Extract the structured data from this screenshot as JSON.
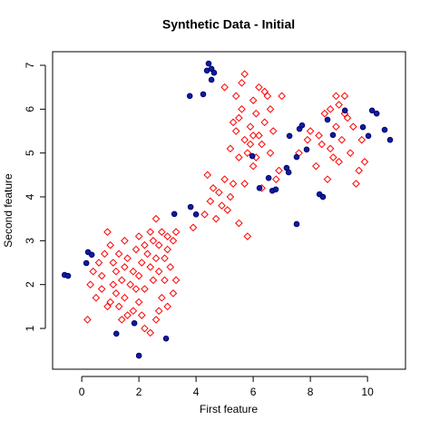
{
  "chart_data": {
    "type": "scatter",
    "title": "Synthetic Data - Initial",
    "xlabel": "First feature",
    "ylabel": "Second feature",
    "xlim": [
      -1.02,
      11.33
    ],
    "ylim": [
      0.07,
      7.31
    ],
    "xticks": [
      0,
      2,
      4,
      6,
      8,
      10
    ],
    "yticks": [
      1,
      2,
      3,
      4,
      5,
      6,
      7
    ],
    "grid": false,
    "series": [
      {
        "color": "#ff0000",
        "marker": "diamond",
        "x": [
          0.2,
          0.5,
          0.7,
          0.9,
          1.0,
          1.1,
          1.2,
          1.3,
          1.5,
          1.6,
          1.8,
          2.0,
          2.2,
          2.4,
          2.6,
          2.7,
          2.8,
          3.0,
          3.2,
          3.3,
          0.3,
          0.4,
          0.6,
          0.8,
          0.9,
          1.0,
          1.1,
          1.2,
          1.3,
          1.4,
          1.5,
          1.6,
          1.7,
          1.8,
          1.9,
          2.0,
          2.0,
          2.1,
          2.2,
          2.2,
          2.3,
          2.4,
          2.4,
          2.5,
          2.5,
          2.6,
          2.7,
          2.7,
          2.8,
          2.9,
          3.0,
          3.0,
          3.1,
          3.2,
          3.3,
          2.6,
          1.5,
          0.7,
          1.9,
          2.9,
          2.1,
          1.4,
          3.9,
          4.3,
          4.5,
          4.7,
          4.8,
          4.9,
          5.0,
          5.1,
          5.2,
          4.4,
          4.6,
          5.3,
          5.5,
          5.8,
          5.7,
          6.0,
          5.2,
          5.4,
          5.5,
          5.6,
          5.7,
          5.8,
          5.9,
          6.0,
          6.1,
          6.2,
          6.3,
          6.4,
          6.5,
          6.6,
          6.7,
          5.4,
          5.6,
          5.7,
          6.2,
          6.4,
          6.8,
          7.0,
          5.9,
          6.1,
          5.3,
          6.0,
          6.9,
          5.0,
          5.5,
          6.3,
          6.6,
          7.6,
          7.9,
          8.0,
          8.2,
          8.4,
          8.5,
          8.7,
          8.8,
          8.9,
          9.0,
          9.1,
          9.2,
          9.3,
          9.4,
          9.5,
          9.6,
          9.7,
          9.8,
          8.6,
          8.9,
          9.2,
          9.0,
          8.3,
          9.9,
          8.7
        ],
        "values": [
          1.2,
          1.7,
          1.9,
          1.5,
          1.6,
          2.0,
          1.8,
          1.5,
          1.7,
          1.3,
          1.4,
          1.6,
          1.0,
          0.9,
          1.2,
          1.4,
          1.7,
          1.5,
          1.8,
          2.1,
          2.0,
          2.3,
          2.5,
          2.7,
          3.2,
          2.9,
          2.5,
          2.3,
          2.7,
          2.1,
          2.4,
          2.6,
          2.0,
          2.3,
          2.8,
          3.1,
          2.2,
          2.5,
          2.9,
          1.9,
          2.7,
          3.2,
          2.4,
          2.1,
          3.0,
          2.6,
          2.3,
          2.9,
          3.2,
          2.6,
          2.8,
          3.1,
          2.4,
          3.0,
          3.2,
          3.5,
          3.0,
          2.2,
          1.9,
          2.1,
          1.3,
          1.2,
          3.3,
          3.6,
          3.9,
          3.5,
          4.1,
          3.8,
          4.4,
          3.7,
          4.0,
          4.5,
          4.2,
          4.3,
          3.4,
          3.1,
          4.3,
          4.7,
          5.1,
          5.5,
          5.8,
          6.0,
          5.3,
          5.0,
          5.6,
          6.2,
          5.9,
          5.4,
          5.2,
          5.7,
          6.3,
          5.0,
          5.5,
          6.3,
          6.6,
          6.8,
          6.5,
          6.4,
          4.4,
          6.3,
          5.2,
          4.9,
          5.7,
          5.4,
          4.6,
          6.5,
          4.9,
          4.2,
          6.0,
          5.0,
          5.3,
          5.5,
          4.7,
          5.2,
          5.9,
          5.1,
          4.9,
          5.6,
          6.1,
          5.3,
          6.3,
          5.8,
          5.0,
          5.6,
          4.3,
          4.6,
          5.3,
          4.4,
          6.3,
          5.9,
          4.8,
          5.4,
          4.8,
          6.0
        ]
      },
      {
        "color": "#0a1f9c",
        "marker": "circle",
        "x": [
          -0.6,
          -0.48,
          0.22,
          0.35,
          0.16,
          1.21,
          1.84,
          2.0,
          2.95,
          3.24,
          3.81,
          4.0,
          3.78,
          4.25,
          4.44,
          4.54,
          4.38,
          4.63,
          4.54,
          5.97,
          6.22,
          6.54,
          6.67,
          6.79,
          7.17,
          7.24,
          7.27,
          7.52,
          7.52,
          7.62,
          7.71,
          7.87,
          8.32,
          8.44,
          8.6,
          8.79,
          9.21,
          9.84,
          10.03,
          10.16,
          10.32,
          10.6,
          10.79
        ],
        "values": [
          2.22,
          2.2,
          2.74,
          2.68,
          2.49,
          0.88,
          1.12,
          0.38,
          0.77,
          3.61,
          3.77,
          3.6,
          6.3,
          6.34,
          7.04,
          6.92,
          6.88,
          6.83,
          6.67,
          4.93,
          4.2,
          4.43,
          4.14,
          4.17,
          4.66,
          4.56,
          5.39,
          4.91,
          3.38,
          5.55,
          5.63,
          5.08,
          4.06,
          4.0,
          5.76,
          5.41,
          5.97,
          5.59,
          5.39,
          5.97,
          5.9,
          5.53,
          5.3
        ]
      }
    ]
  }
}
